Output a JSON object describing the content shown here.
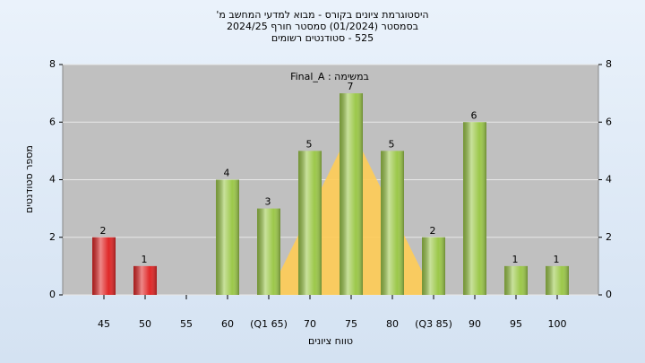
{
  "chart_data": {
    "type": "bar",
    "title": [
      "היסטוגרמת ציונים בקורס - מבוא למדעי המחשב מ'",
      "בסמסטר (01/2024) סמסטר חורף 2024/25",
      "525 - סטודנטים רשומים"
    ],
    "annotation": "במשימה : Final_A",
    "x_label": "טווח ציונים",
    "y_label": "מספר סטודנטים",
    "categories": [
      "45",
      "50",
      "55",
      "60",
      "(Q1 65)",
      "70",
      "75",
      "80",
      "(Q3 85)",
      "90",
      "95",
      "100"
    ],
    "values": [
      2,
      1,
      null,
      4,
      3,
      5,
      7,
      5,
      2,
      6,
      1,
      1
    ],
    "colors": [
      "#e02828",
      "#e02828",
      "#9cc84a",
      "#9cc84a",
      "#9cc84a",
      "#9cc84a",
      "#9cc84a",
      "#9cc84a",
      "#9cc84a",
      "#9cc84a",
      "#9cc84a",
      "#9cc84a"
    ],
    "overlay": {
      "color": "#ffcc55",
      "x": [
        65,
        75,
        85
      ],
      "values": [
        0,
        5.8,
        0
      ]
    },
    "ylim": [
      0,
      8
    ],
    "yticks": [
      0,
      2,
      4,
      6,
      8
    ],
    "y2lim": [
      0,
      8
    ],
    "y2ticks": [
      0,
      2,
      4,
      6,
      8
    ],
    "grid": true
  }
}
